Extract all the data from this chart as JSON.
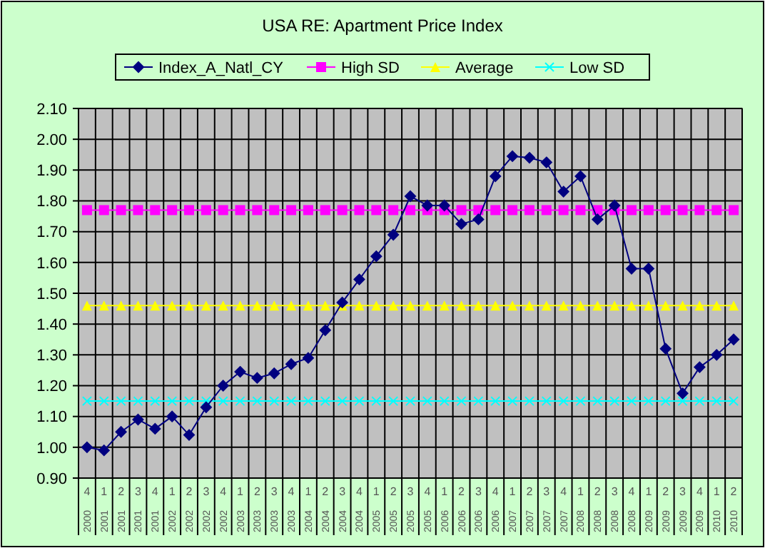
{
  "chart_data": {
    "type": "line",
    "title": "USA RE: Apartment Price Index",
    "categories": [
      "4 2000",
      "1 2001",
      "2 2001",
      "3 2001",
      "4 2001",
      "1 2002",
      "2 2002",
      "3 2002",
      "4 2002",
      "1 2003",
      "2 2003",
      "3 2003",
      "4 2003",
      "1 2004",
      "2 2004",
      "3 2004",
      "4 2004",
      "1 2005",
      "2 2005",
      "3 2005",
      "4 2005",
      "1 2006",
      "2 2006",
      "3 2006",
      "4 2006",
      "1 2007",
      "2 2007",
      "3 2007",
      "4 2007",
      "1 2008",
      "2 2008",
      "3 2008",
      "4 2008",
      "1 2009",
      "2 2009",
      "3 2009",
      "4 2009",
      "1 2010",
      "2 2010"
    ],
    "series": [
      {
        "name": "Index_A_Natl_CY",
        "color": "#000080",
        "marker": "diamond",
        "values": [
          1.0,
          0.99,
          1.05,
          1.09,
          1.06,
          1.1,
          1.04,
          1.13,
          1.2,
          1.245,
          1.225,
          1.24,
          1.27,
          1.29,
          1.38,
          1.47,
          1.545,
          1.62,
          1.69,
          1.815,
          1.785,
          1.785,
          1.725,
          1.74,
          1.88,
          1.945,
          1.94,
          1.925,
          1.83,
          1.88,
          1.74,
          1.785,
          1.58,
          1.58,
          1.32,
          1.175,
          1.26,
          1.3,
          1.35
        ]
      },
      {
        "name": "High SD",
        "color": "#ff00ff",
        "marker": "square",
        "values": [
          1.77,
          1.77,
          1.77,
          1.77,
          1.77,
          1.77,
          1.77,
          1.77,
          1.77,
          1.77,
          1.77,
          1.77,
          1.77,
          1.77,
          1.77,
          1.77,
          1.77,
          1.77,
          1.77,
          1.77,
          1.77,
          1.77,
          1.77,
          1.77,
          1.77,
          1.77,
          1.77,
          1.77,
          1.77,
          1.77,
          1.77,
          1.77,
          1.77,
          1.77,
          1.77,
          1.77,
          1.77,
          1.77,
          1.77
        ]
      },
      {
        "name": "Average",
        "color": "#ffff00",
        "marker": "triangle",
        "values": [
          1.46,
          1.46,
          1.46,
          1.46,
          1.46,
          1.46,
          1.46,
          1.46,
          1.46,
          1.46,
          1.46,
          1.46,
          1.46,
          1.46,
          1.46,
          1.46,
          1.46,
          1.46,
          1.46,
          1.46,
          1.46,
          1.46,
          1.46,
          1.46,
          1.46,
          1.46,
          1.46,
          1.46,
          1.46,
          1.46,
          1.46,
          1.46,
          1.46,
          1.46,
          1.46,
          1.46,
          1.46,
          1.46,
          1.46
        ]
      },
      {
        "name": "Low SD",
        "color": "#00ffff",
        "marker": "cross",
        "values": [
          1.15,
          1.15,
          1.15,
          1.15,
          1.15,
          1.15,
          1.15,
          1.15,
          1.15,
          1.15,
          1.15,
          1.15,
          1.15,
          1.15,
          1.15,
          1.15,
          1.15,
          1.15,
          1.15,
          1.15,
          1.15,
          1.15,
          1.15,
          1.15,
          1.15,
          1.15,
          1.15,
          1.15,
          1.15,
          1.15,
          1.15,
          1.15,
          1.15,
          1.15,
          1.15,
          1.15,
          1.15,
          1.15,
          1.15
        ]
      }
    ],
    "ylim": [
      0.9,
      2.1
    ],
    "yticks": [
      {
        "value": 0.9,
        "label": "0.90"
      },
      {
        "value": 1.0,
        "label": "1.00"
      },
      {
        "value": 1.1,
        "label": "1.10"
      },
      {
        "value": 1.2,
        "label": "1.20"
      },
      {
        "value": 1.3,
        "label": "1.30"
      },
      {
        "value": 1.4,
        "label": "1.40"
      },
      {
        "value": 1.5,
        "label": "1.50"
      },
      {
        "value": 1.6,
        "label": "1.60"
      },
      {
        "value": 1.7,
        "label": "1.70"
      },
      {
        "value": 1.8,
        "label": "1.80"
      },
      {
        "value": 1.9,
        "label": "1.90"
      },
      {
        "value": 2.0,
        "label": "2.00"
      },
      {
        "value": 2.1,
        "label": "2.10"
      }
    ],
    "grid": true,
    "legend": "top",
    "line_style": "solid"
  }
}
